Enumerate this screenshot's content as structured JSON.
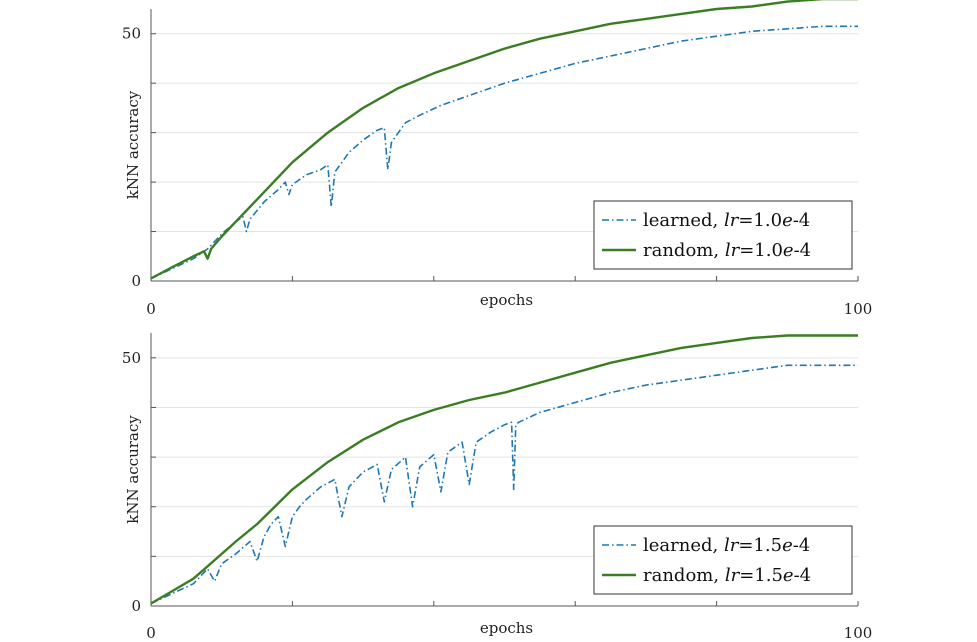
{
  "colors": {
    "learned": "#1f77b4",
    "random": "#3a7d22",
    "grid": "#e3e3e3",
    "axis": "#555555"
  },
  "chart_data": [
    {
      "type": "line",
      "xlabel": "epochs",
      "ylabel": "kNN accuracy",
      "xlim": [
        0,
        100
      ],
      "ylim": [
        0,
        55
      ],
      "x_ticks": [
        0,
        20,
        40,
        60,
        80,
        100
      ],
      "x_tick_labels": [
        "0",
        "",
        "",
        "",
        "",
        "100"
      ],
      "y_ticks": [
        0,
        10,
        20,
        30,
        40,
        50
      ],
      "y_tick_labels": [
        "0",
        "",
        "",
        "",
        "",
        "50"
      ],
      "grid": true,
      "legend_position": "bottom-right",
      "series": [
        {
          "name": "learned, lr=1.0e-4",
          "legend": {
            "prefix": "learned, ",
            "var": "lr",
            "eq": "=1.0",
            "exp_var": "e",
            "suffix": "-4"
          },
          "style": "dashdot",
          "x": [
            0,
            3,
            6,
            8,
            10,
            12,
            13,
            13.5,
            14,
            16,
            18,
            19,
            19.5,
            20,
            22,
            24,
            25,
            25.5,
            26,
            28,
            30,
            32,
            33,
            33.5,
            34,
            36,
            38,
            41,
            45,
            50,
            55,
            60,
            65,
            70,
            75,
            80,
            85,
            90,
            95,
            100
          ],
          "y": [
            0.5,
            2.5,
            4.5,
            6.5,
            9.5,
            12,
            13,
            10,
            12.5,
            16,
            18.5,
            20,
            17.5,
            19.5,
            21.5,
            22.5,
            23.5,
            15,
            22,
            26,
            28.5,
            30.5,
            31,
            22.5,
            28,
            32,
            33.5,
            35.5,
            37.5,
            40,
            42,
            44,
            45.5,
            47,
            48.5,
            49.5,
            50.5,
            51,
            51.5,
            51.5
          ]
        },
        {
          "name": "random, lr=1.0e-4",
          "legend": {
            "prefix": "random, ",
            "var": "lr",
            "eq": "=1.0",
            "exp_var": "e",
            "suffix": "-4"
          },
          "style": "solid",
          "x": [
            0,
            3,
            6,
            7.5,
            8,
            8.5,
            10,
            12,
            15,
            20,
            25,
            30,
            35,
            40,
            45,
            50,
            55,
            60,
            65,
            70,
            75,
            80,
            85,
            90,
            95,
            100
          ],
          "y": [
            0.5,
            2.8,
            5,
            6,
            4.5,
            6.5,
            9,
            12,
            16.5,
            24,
            30,
            35,
            39,
            42,
            44.5,
            47,
            49,
            50.5,
            52,
            53,
            54,
            55,
            55.5,
            56.5,
            57,
            57
          ]
        }
      ]
    },
    {
      "type": "line",
      "xlabel": "epochs",
      "ylabel": "kNN accuracy",
      "xlim": [
        0,
        100
      ],
      "ylim": [
        0,
        55
      ],
      "x_ticks": [
        0,
        20,
        40,
        60,
        80,
        100
      ],
      "x_tick_labels": [
        "0",
        "",
        "",
        "",
        "",
        "100"
      ],
      "y_ticks": [
        0,
        10,
        20,
        30,
        40,
        50
      ],
      "y_tick_labels": [
        "0",
        "",
        "",
        "",
        "",
        "50"
      ],
      "grid": true,
      "legend_position": "bottom-right",
      "series": [
        {
          "name": "learned, lr=1.5e-4",
          "legend": {
            "prefix": "learned, ",
            "var": "lr",
            "eq": "=1.5",
            "exp_var": "e",
            "suffix": "-4"
          },
          "style": "dashdot",
          "x": [
            0,
            3,
            6,
            8,
            9,
            10,
            12,
            14,
            15,
            16,
            17,
            18,
            19,
            20,
            21,
            22,
            24,
            26,
            27,
            28,
            30,
            32,
            33,
            34,
            36,
            37,
            38,
            40,
            41,
            42,
            44,
            45,
            46,
            48,
            50,
            51,
            51.3,
            51.6,
            52,
            55,
            60,
            65,
            70,
            75,
            80,
            85,
            90,
            95,
            100
          ],
          "y": [
            0.5,
            2.5,
            4.5,
            7.5,
            5,
            8.5,
            10.5,
            13,
            9,
            14,
            16.5,
            18,
            12,
            18,
            20,
            21.5,
            24,
            25.5,
            18,
            24,
            27,
            28.5,
            21,
            27.5,
            30,
            20,
            28,
            30.5,
            23,
            31,
            33,
            24.5,
            33,
            35,
            36.5,
            37,
            23.5,
            36.5,
            37,
            39,
            41,
            43,
            44.5,
            45.5,
            46.5,
            47.5,
            48.5,
            48.5,
            48.5
          ]
        },
        {
          "name": "random, lr=1.5e-4",
          "legend": {
            "prefix": "random, ",
            "var": "lr",
            "eq": "=1.5",
            "exp_var": "e",
            "suffix": "-4"
          },
          "style": "solid",
          "x": [
            0,
            3,
            6,
            8,
            10,
            12,
            15,
            20,
            25,
            30,
            35,
            40,
            45,
            50,
            55,
            60,
            65,
            70,
            75,
            80,
            85,
            90,
            95,
            100
          ],
          "y": [
            0.5,
            3,
            5.5,
            8,
            10.5,
            13,
            16.5,
            23.5,
            29,
            33.5,
            37,
            39.5,
            41.5,
            43,
            45,
            47,
            49,
            50.5,
            52,
            53,
            54,
            54.5,
            54.5,
            54.5
          ]
        }
      ]
    }
  ]
}
